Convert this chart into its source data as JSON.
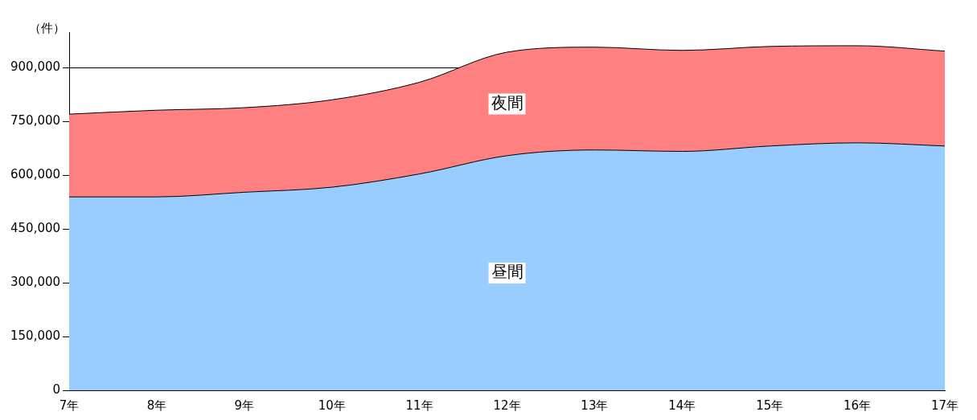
{
  "chart_data": {
    "type": "area",
    "stacked": true,
    "ylabel": "（件）",
    "categories": [
      "7年",
      "8年",
      "9年",
      "10年",
      "11年",
      "12年",
      "13年",
      "14年",
      "15年",
      "16年",
      "17年"
    ],
    "series": [
      {
        "name": "昼間",
        "color": "#99ccff",
        "values": [
          540000,
          540000,
          553000,
          567000,
          604000,
          655000,
          671000,
          667000,
          682000,
          691000,
          682000
        ]
      },
      {
        "name": "夜間",
        "color": "#ff8080",
        "values": [
          231000,
          242000,
          236000,
          244000,
          256000,
          289000,
          287000,
          282000,
          278000,
          271000,
          265000
        ]
      }
    ],
    "ylim": [
      0,
      1000000
    ],
    "yticks": [
      {
        "value": 0,
        "label": "0"
      },
      {
        "value": 150000,
        "label": "150,000"
      },
      {
        "value": 300000,
        "label": "300,000"
      },
      {
        "value": 450000,
        "label": "450,000"
      },
      {
        "value": 600000,
        "label": "600,000"
      },
      {
        "value": 750000,
        "label": "750,000"
      },
      {
        "value": 900000,
        "label": "900,000"
      }
    ],
    "grid": "y",
    "legend": false
  }
}
